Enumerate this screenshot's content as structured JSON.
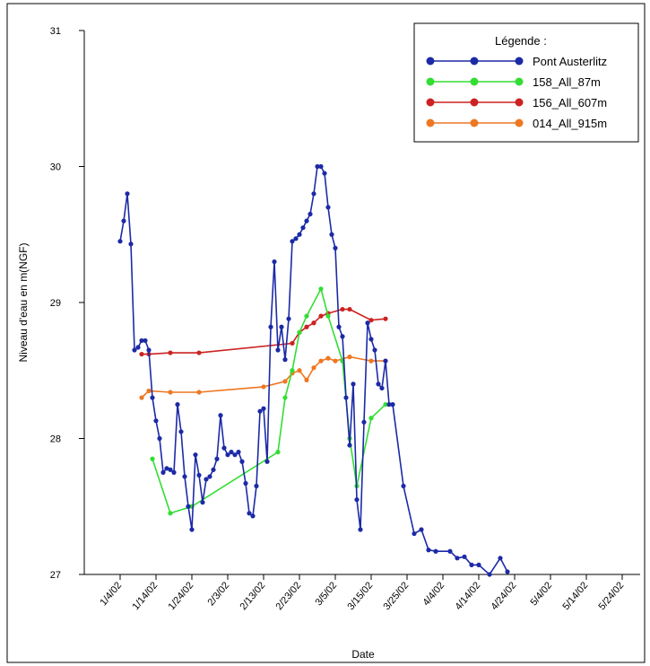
{
  "chart_data": {
    "type": "line",
    "title": "",
    "xlabel": "Date",
    "ylabel": "Niveau d'eau en m(NGF)",
    "legend": {
      "title": "Légende :",
      "placement": "top-right"
    },
    "x_ticks": [
      "1/4/02",
      "1/14/02",
      "1/24/02",
      "2/3/02",
      "2/13/02",
      "2/23/02",
      "3/5/02",
      "3/15/02",
      "3/25/02",
      "4/4/02",
      "4/14/02",
      "4/24/02",
      "5/4/02",
      "5/14/02",
      "5/24/02"
    ],
    "x_tick_days": [
      0,
      10,
      20,
      30,
      40,
      50,
      60,
      70,
      80,
      90,
      100,
      110,
      120,
      130,
      140
    ],
    "y_ticks": [
      "27",
      "28",
      "29",
      "30",
      "31"
    ],
    "y_tick_values": [
      27,
      28,
      29,
      30,
      31
    ],
    "ylim": [
      27,
      31
    ],
    "xlim_days": [
      -10,
      145
    ],
    "grid": false,
    "series": [
      {
        "name": "Pont Austerlitz",
        "color": "#1c2aa6",
        "points": [
          [
            0,
            29.45
          ],
          [
            1,
            29.6
          ],
          [
            2,
            29.8
          ],
          [
            3,
            29.43
          ],
          [
            4,
            28.65
          ],
          [
            5,
            28.67
          ],
          [
            6,
            28.72
          ],
          [
            7,
            28.72
          ],
          [
            8,
            28.65
          ],
          [
            9,
            28.3
          ],
          [
            10,
            28.13
          ],
          [
            11,
            28.0
          ],
          [
            12,
            27.75
          ],
          [
            13,
            27.78
          ],
          [
            14,
            27.77
          ],
          [
            15,
            27.75
          ],
          [
            16,
            28.25
          ],
          [
            17,
            28.05
          ],
          [
            18,
            27.72
          ],
          [
            19,
            27.5
          ],
          [
            20,
            27.33
          ],
          [
            21,
            27.88
          ],
          [
            22,
            27.73
          ],
          [
            23,
            27.53
          ],
          [
            24,
            27.7
          ],
          [
            25,
            27.72
          ],
          [
            26,
            27.77
          ],
          [
            27,
            27.85
          ],
          [
            28,
            28.17
          ],
          [
            29,
            27.93
          ],
          [
            30,
            27.88
          ],
          [
            31,
            27.9
          ],
          [
            32,
            27.88
          ],
          [
            33,
            27.9
          ],
          [
            34,
            27.83
          ],
          [
            35,
            27.67
          ],
          [
            36,
            27.45
          ],
          [
            37,
            27.43
          ],
          [
            38,
            27.65
          ],
          [
            39,
            28.2
          ],
          [
            40,
            28.22
          ],
          [
            41,
            27.83
          ],
          [
            42,
            28.82
          ],
          [
            43,
            29.3
          ],
          [
            44,
            28.65
          ],
          [
            45,
            28.82
          ],
          [
            46,
            28.58
          ],
          [
            47,
            28.88
          ],
          [
            48,
            29.45
          ],
          [
            49,
            29.47
          ],
          [
            50,
            29.5
          ],
          [
            51,
            29.55
          ],
          [
            52,
            29.6
          ],
          [
            53,
            29.65
          ],
          [
            54,
            29.8
          ],
          [
            55,
            30.0
          ],
          [
            56,
            30.0
          ],
          [
            57,
            29.95
          ],
          [
            58,
            29.7
          ],
          [
            59,
            29.5
          ],
          [
            60,
            29.4
          ],
          [
            61,
            28.82
          ],
          [
            62,
            28.75
          ],
          [
            63,
            28.3
          ],
          [
            64,
            27.95
          ],
          [
            65,
            28.4
          ],
          [
            66,
            27.55
          ],
          [
            67,
            27.33
          ],
          [
            68,
            28.12
          ],
          [
            69,
            28.85
          ],
          [
            70,
            28.73
          ],
          [
            71,
            28.65
          ],
          [
            72,
            28.4
          ],
          [
            73,
            28.37
          ],
          [
            74,
            28.57
          ],
          [
            75,
            28.25
          ],
          [
            76,
            28.25
          ],
          [
            79,
            27.65
          ],
          [
            82,
            27.3
          ],
          [
            84,
            27.33
          ],
          [
            86,
            27.18
          ],
          [
            88,
            27.17
          ],
          [
            92,
            27.17
          ],
          [
            94,
            27.12
          ],
          [
            96,
            27.13
          ],
          [
            98,
            27.07
          ],
          [
            100,
            27.07
          ],
          [
            103,
            27.0
          ],
          [
            106,
            27.12
          ],
          [
            108,
            27.02
          ]
        ]
      },
      {
        "name": "158_All_87m",
        "color": "#33dd33",
        "points": [
          [
            9,
            27.85
          ],
          [
            14,
            27.45
          ],
          [
            20,
            27.5
          ],
          [
            44,
            27.9
          ],
          [
            46,
            28.3
          ],
          [
            48,
            28.5
          ],
          [
            50,
            28.78
          ],
          [
            52,
            28.9
          ],
          [
            56,
            29.1
          ],
          [
            58,
            28.9
          ],
          [
            62,
            28.57
          ],
          [
            64,
            28.0
          ],
          [
            66,
            27.65
          ],
          [
            70,
            28.15
          ],
          [
            74,
            28.25
          ]
        ]
      },
      {
        "name": "156_All_607m",
        "color": "#cc2222",
        "points": [
          [
            6,
            28.62
          ],
          [
            8,
            28.62
          ],
          [
            14,
            28.63
          ],
          [
            22,
            28.63
          ],
          [
            48,
            28.7
          ],
          [
            50,
            28.78
          ],
          [
            52,
            28.82
          ],
          [
            54,
            28.85
          ],
          [
            56,
            28.9
          ],
          [
            58,
            28.92
          ],
          [
            62,
            28.95
          ],
          [
            64,
            28.95
          ],
          [
            70,
            28.87
          ],
          [
            74,
            28.88
          ]
        ]
      },
      {
        "name": "014_All_915m",
        "color": "#ee7722",
        "points": [
          [
            6,
            28.3
          ],
          [
            8,
            28.35
          ],
          [
            14,
            28.34
          ],
          [
            22,
            28.34
          ],
          [
            40,
            28.38
          ],
          [
            46,
            28.42
          ],
          [
            48,
            28.48
          ],
          [
            50,
            28.5
          ],
          [
            52,
            28.43
          ],
          [
            54,
            28.52
          ],
          [
            56,
            28.57
          ],
          [
            58,
            28.59
          ],
          [
            60,
            28.57
          ],
          [
            64,
            28.6
          ],
          [
            70,
            28.57
          ],
          [
            74,
            28.57
          ]
        ]
      }
    ]
  }
}
